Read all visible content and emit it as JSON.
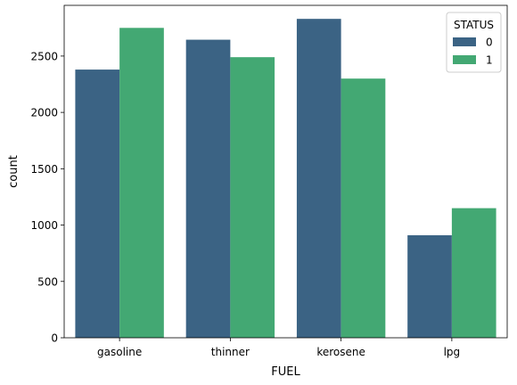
{
  "chart_data": {
    "type": "bar",
    "title": "",
    "xlabel": "FUEL",
    "ylabel": "count",
    "categories": [
      "gasoline",
      "thinner",
      "kerosene",
      "lpg"
    ],
    "series": [
      {
        "name": "0",
        "values": [
          2380,
          2645,
          2830,
          910
        ],
        "color": "#3b6384"
      },
      {
        "name": "1",
        "values": [
          2750,
          2490,
          2300,
          1150
        ],
        "color": "#43a873"
      }
    ],
    "ylim": [
      0,
      2950
    ],
    "yticks": [
      0,
      500,
      1000,
      1500,
      2000,
      2500
    ],
    "grid": false,
    "legend": {
      "title": "STATUS",
      "placement": "top-right"
    }
  }
}
